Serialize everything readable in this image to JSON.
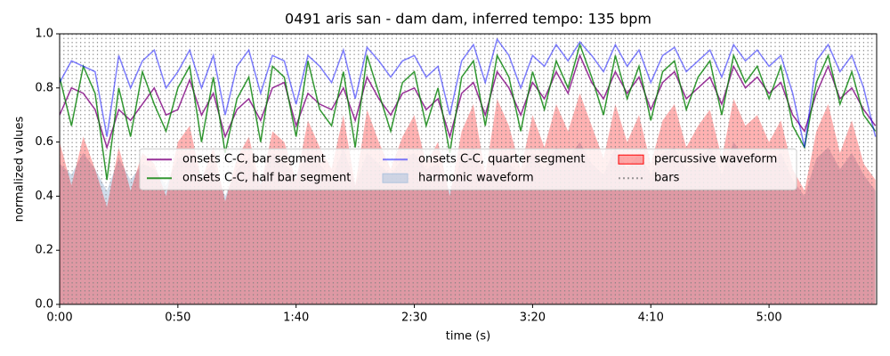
{
  "chart_data": {
    "type": "line",
    "title": "0491 aris san - dam dam, inferred tempo: 135 bpm",
    "xlabel": "time (s)",
    "ylabel": "normalized values",
    "xlim": [
      0,
      345.5
    ],
    "ylim": [
      0,
      1
    ],
    "xticks": [
      {
        "value": 0,
        "label": "0:00"
      },
      {
        "value": 50,
        "label": "0:50"
      },
      {
        "value": 100,
        "label": "1:40"
      },
      {
        "value": 150,
        "label": "2:30"
      },
      {
        "value": 200,
        "label": "3:20"
      },
      {
        "value": 250,
        "label": "4:10"
      },
      {
        "value": 300,
        "label": "5:00"
      }
    ],
    "yticks": [
      {
        "value": 0,
        "label": "0.0"
      },
      0.2,
      0.4,
      0.6,
      0.8,
      {
        "value": 1,
        "label": "1.0"
      }
    ],
    "legend": "upper center",
    "x": [
      0,
      5,
      10,
      15,
      20,
      25,
      30,
      35,
      40,
      45,
      50,
      55,
      60,
      65,
      70,
      75,
      80,
      85,
      90,
      95,
      100,
      105,
      110,
      115,
      120,
      125,
      130,
      135,
      140,
      145,
      150,
      155,
      160,
      165,
      170,
      175,
      180,
      185,
      190,
      195,
      200,
      205,
      210,
      215,
      220,
      225,
      230,
      235,
      240,
      245,
      250,
      255,
      260,
      265,
      270,
      275,
      280,
      285,
      290,
      295,
      300,
      305,
      310,
      315,
      320,
      325,
      330,
      335,
      340,
      345
    ],
    "series": [
      {
        "name": "onsets C-C, bar segment",
        "kind": "line",
        "color": "#800080",
        "alpha": 0.8,
        "values": [
          0.7,
          0.8,
          0.78,
          0.72,
          0.58,
          0.72,
          0.68,
          0.74,
          0.8,
          0.7,
          0.72,
          0.83,
          0.7,
          0.78,
          0.62,
          0.72,
          0.76,
          0.68,
          0.8,
          0.82,
          0.66,
          0.78,
          0.74,
          0.72,
          0.8,
          0.68,
          0.84,
          0.76,
          0.7,
          0.78,
          0.8,
          0.72,
          0.76,
          0.62,
          0.78,
          0.82,
          0.7,
          0.86,
          0.8,
          0.7,
          0.82,
          0.76,
          0.86,
          0.78,
          0.92,
          0.82,
          0.76,
          0.86,
          0.78,
          0.84,
          0.72,
          0.82,
          0.86,
          0.76,
          0.8,
          0.84,
          0.74,
          0.88,
          0.8,
          0.84,
          0.78,
          0.82,
          0.7,
          0.64,
          0.78,
          0.88,
          0.76,
          0.8,
          0.72,
          0.66
        ]
      },
      {
        "name": "onsets C-C, half bar segment",
        "kind": "line",
        "color": "#008000",
        "alpha": 0.8,
        "values": [
          0.84,
          0.66,
          0.88,
          0.78,
          0.46,
          0.8,
          0.62,
          0.86,
          0.74,
          0.64,
          0.8,
          0.88,
          0.6,
          0.84,
          0.56,
          0.76,
          0.84,
          0.6,
          0.88,
          0.84,
          0.62,
          0.9,
          0.72,
          0.66,
          0.86,
          0.58,
          0.92,
          0.78,
          0.64,
          0.82,
          0.86,
          0.66,
          0.8,
          0.56,
          0.84,
          0.9,
          0.66,
          0.92,
          0.84,
          0.64,
          0.86,
          0.72,
          0.9,
          0.8,
          0.96,
          0.84,
          0.7,
          0.92,
          0.76,
          0.88,
          0.68,
          0.86,
          0.9,
          0.72,
          0.84,
          0.9,
          0.7,
          0.92,
          0.82,
          0.88,
          0.76,
          0.88,
          0.66,
          0.58,
          0.82,
          0.92,
          0.74,
          0.86,
          0.7,
          0.64
        ]
      },
      {
        "name": "onsets C-C, quarter segment",
        "kind": "line",
        "color": "#0000ff",
        "alpha": 0.5,
        "values": [
          0.82,
          0.9,
          0.88,
          0.86,
          0.62,
          0.92,
          0.8,
          0.9,
          0.94,
          0.8,
          0.86,
          0.94,
          0.8,
          0.92,
          0.7,
          0.88,
          0.94,
          0.78,
          0.92,
          0.9,
          0.74,
          0.92,
          0.88,
          0.82,
          0.94,
          0.76,
          0.95,
          0.9,
          0.84,
          0.9,
          0.92,
          0.84,
          0.88,
          0.7,
          0.9,
          0.96,
          0.82,
          0.98,
          0.92,
          0.8,
          0.92,
          0.88,
          0.96,
          0.9,
          0.97,
          0.92,
          0.86,
          0.96,
          0.88,
          0.94,
          0.82,
          0.92,
          0.95,
          0.86,
          0.9,
          0.94,
          0.84,
          0.96,
          0.9,
          0.94,
          0.88,
          0.92,
          0.78,
          0.58,
          0.9,
          0.96,
          0.86,
          0.92,
          0.8,
          0.62
        ]
      },
      {
        "name": "harmonic waveform",
        "kind": "area",
        "color": "#b0c4de",
        "alpha": 0.6,
        "values": [
          0.52,
          0.48,
          0.56,
          0.5,
          0.42,
          0.54,
          0.46,
          0.52,
          0.5,
          0.44,
          0.54,
          0.56,
          0.48,
          0.52,
          0.4,
          0.5,
          0.54,
          0.46,
          0.56,
          0.52,
          0.48,
          0.56,
          0.52,
          0.46,
          0.58,
          0.44,
          0.56,
          0.52,
          0.48,
          0.54,
          0.56,
          0.5,
          0.52,
          0.42,
          0.54,
          0.58,
          0.46,
          0.56,
          0.52,
          0.48,
          0.56,
          0.5,
          0.58,
          0.54,
          0.6,
          0.52,
          0.48,
          0.58,
          0.5,
          0.56,
          0.48,
          0.56,
          0.58,
          0.5,
          0.54,
          0.58,
          0.48,
          0.6,
          0.54,
          0.56,
          0.52,
          0.56,
          0.46,
          0.4,
          0.54,
          0.58,
          0.5,
          0.56,
          0.48,
          0.42
        ]
      },
      {
        "name": "percussive waveform",
        "kind": "area",
        "color": "#ff0000",
        "alpha": 0.3,
        "values": [
          0.6,
          0.44,
          0.62,
          0.5,
          0.36,
          0.58,
          0.42,
          0.56,
          0.52,
          0.4,
          0.6,
          0.66,
          0.46,
          0.58,
          0.38,
          0.54,
          0.62,
          0.44,
          0.64,
          0.6,
          0.46,
          0.68,
          0.58,
          0.5,
          0.7,
          0.44,
          0.72,
          0.6,
          0.5,
          0.62,
          0.7,
          0.52,
          0.6,
          0.4,
          0.64,
          0.74,
          0.48,
          0.76,
          0.66,
          0.5,
          0.7,
          0.58,
          0.74,
          0.64,
          0.78,
          0.66,
          0.54,
          0.74,
          0.6,
          0.7,
          0.52,
          0.68,
          0.74,
          0.58,
          0.66,
          0.72,
          0.54,
          0.76,
          0.66,
          0.7,
          0.6,
          0.68,
          0.5,
          0.42,
          0.64,
          0.74,
          0.56,
          0.68,
          0.52,
          0.46
        ]
      },
      {
        "name": "bars",
        "kind": "vlines",
        "color": "#808080",
        "alpha": 0.8,
        "x": [
          0,
          1.8,
          3.6,
          5.3,
          7.1,
          8.9,
          10.7,
          12.5,
          14.2,
          16.0,
          17.8,
          19.6,
          21.4,
          23.1,
          24.9,
          26.7,
          28.5,
          30.3,
          32.0,
          33.8,
          35.6,
          37.4,
          39.2,
          40.9,
          42.7,
          44.5,
          46.3,
          48.1,
          49.8,
          51.6,
          53.4,
          55.2,
          57.0,
          58.7,
          60.5,
          62.3,
          64.1,
          65.9,
          67.6,
          69.4,
          71.2,
          73.0,
          74.8,
          76.5,
          78.3,
          80.1,
          81.9,
          83.7,
          85.4,
          87.2,
          89.0,
          90.8,
          92.6,
          94.3,
          96.1,
          97.9,
          99.7,
          101.5,
          103.2,
          105.0,
          106.8,
          108.6,
          110.4,
          112.1,
          113.9,
          115.7,
          117.5,
          119.3,
          121.0,
          122.8,
          124.6,
          126.4,
          128.2,
          129.9,
          131.7,
          133.5,
          135.3,
          137.1,
          138.8,
          140.6,
          142.4,
          144.2,
          146.0,
          147.7,
          149.5,
          151.3,
          153.1,
          154.9,
          156.6,
          158.4,
          160.2,
          162.0,
          163.8,
          165.5,
          167.3,
          169.1,
          170.9,
          172.7,
          174.4,
          176.2,
          178.0,
          179.8,
          181.6,
          183.3,
          185.1,
          186.9,
          188.7,
          190.5,
          192.2,
          194.0,
          195.8,
          197.6,
          199.4,
          201.1,
          202.9,
          204.7,
          206.5,
          208.3,
          210.0,
          211.8,
          213.6,
          215.4,
          217.2,
          218.9,
          220.7,
          222.5,
          224.3,
          226.1,
          227.8,
          229.6,
          231.4,
          233.2,
          235.0,
          236.7,
          238.5,
          240.3,
          242.1,
          243.9,
          245.6,
          247.4,
          249.2,
          251.0,
          252.8,
          254.5,
          256.3,
          258.1,
          259.9,
          261.7,
          263.4,
          265.2,
          267.0,
          268.8,
          270.6,
          272.3,
          274.1,
          275.9,
          277.7,
          279.5,
          281.2,
          283.0,
          284.8,
          286.6,
          288.4,
          290.1,
          291.9,
          293.7,
          295.5,
          297.3,
          299.0,
          300.8,
          302.6,
          304.4,
          306.2,
          307.9,
          309.7,
          311.5,
          313.3,
          315.1,
          316.8,
          318.6,
          320.4,
          322.2,
          324.0,
          325.7,
          327.5,
          329.3,
          331.1,
          332.9,
          334.6,
          336.4,
          338.2,
          340.0,
          341.8,
          343.5
        ]
      }
    ]
  }
}
